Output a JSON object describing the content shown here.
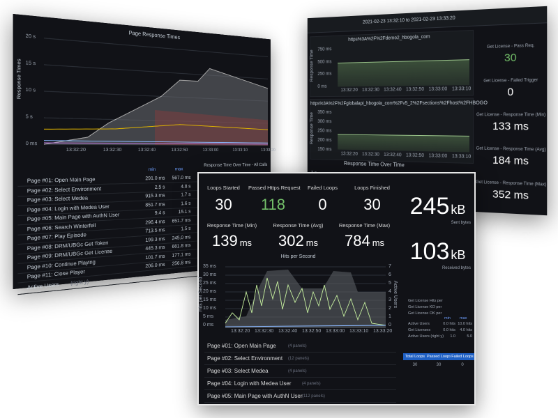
{
  "back_left": {
    "chart_title": "Page Response Times",
    "y_label": "Response Times",
    "yticks": [
      "20 s",
      "15 s",
      "10 s",
      "5 s",
      "0 ms"
    ],
    "xticks": [
      "13:32:20",
      "13:32:30",
      "13:32:40",
      "13:32:50",
      "13:33:00",
      "13:33:10",
      "13:33:20"
    ],
    "legend_header": [
      "min",
      "max"
    ],
    "legend": [
      {
        "name": "Page #01: Open Main Page",
        "min": "291.0 ms",
        "max": "567.0 ms"
      },
      {
        "name": "Page #02: Select Environment",
        "min": "2.5 s",
        "max": "4.8 s"
      },
      {
        "name": "Page #03: Select Medea",
        "min": "915.3 ms",
        "max": "1.7 s"
      },
      {
        "name": "Page #04: Login with Medea User",
        "min": "851.7 ms",
        "max": "1.6 s"
      },
      {
        "name": "Page #05: Main Page with AuthN User",
        "min": "9.4 s",
        "max": "15.1 s"
      },
      {
        "name": "Page #06: Search Winterfell",
        "min": "296.4 ms",
        "max": "651.7 ms"
      },
      {
        "name": "Page #07: Play Episode",
        "min": "713.5 ms",
        "max": "1.5 s"
      },
      {
        "name": "Page #08: DRM/UBGc Get Token",
        "min": "199.3 ms",
        "max": "245.0 ms"
      },
      {
        "name": "Page #09: DRM/UBGc Get License",
        "min": "445.3 ms",
        "max": "661.8 ms"
      },
      {
        "name": "Page #10: Continue Playing",
        "min": "101.7 ms",
        "max": "177.1 ms"
      },
      {
        "name": "Page #11: Close Player",
        "min": "206.0 ms",
        "max": "256.8 ms"
      }
    ],
    "active_users": "Active Users",
    "active_users_note": "(right y)",
    "second_title": "Response Time Over Time - All Calls"
  },
  "back_right": {
    "time_range": "2021-02-23 13:32:10 to 2021-02-23 13:33:20",
    "panels": [
      {
        "title": "https%3A%2F%2Fdemo2_hbogola_com",
        "y_label": "Response Time",
        "yticks": [
          "750 ms",
          "500 ms",
          "250 ms",
          "0 ms"
        ]
      },
      {
        "title": "https%3A%2F%2Fglobalapi_hbogola_com%2Fv5_2%2Fsections%2Fhost%2FHBOGO",
        "y_label": "Response Time",
        "yticks": [
          "350 ms",
          "300 ms",
          "250 ms",
          "200 ms",
          "150 ms"
        ]
      }
    ],
    "xticks": [
      "13:32:20",
      "13:32:30",
      "13:32:40",
      "13:32:50",
      "13:33:00",
      "13:33:10"
    ],
    "third_title": "Response Time Over Time",
    "third_ytick": "2 s",
    "stats": [
      {
        "label": "Get License - Pass Req.",
        "value": "30"
      },
      {
        "label": "Get License - Failed Trigger",
        "value": "0"
      },
      {
        "label": "Get License - Response Time (Min)",
        "value": "133 ms"
      },
      {
        "label": "Get License - Response Time (Avg)",
        "value": "184 ms"
      },
      {
        "label": "Get License - Response Time (Max)",
        "value": "352 ms"
      }
    ]
  },
  "front": {
    "stats": [
      {
        "label": "Loops Started",
        "value": "30"
      },
      {
        "label": "Passed Https Request",
        "value": "118"
      },
      {
        "label": "Failed Loops",
        "value": "0"
      },
      {
        "label": "Loops Finished",
        "value": "30"
      }
    ],
    "times": [
      {
        "label": "Response Time (Min)",
        "value": "139",
        "unit": "ms"
      },
      {
        "label": "Response Time (Avg)",
        "value": "302",
        "unit": "ms"
      },
      {
        "label": "Response Time (Max)",
        "value": "784",
        "unit": "ms"
      }
    ],
    "bytes": [
      {
        "value": "245",
        "unit": "kB",
        "label": "Sent bytes"
      },
      {
        "value": "103",
        "unit": "kB",
        "label": "Received bytes"
      }
    ],
    "chart_title": "Hits per Second",
    "y_label": "Hits per Second",
    "y2_label": "Active Users",
    "yticks": [
      "35 ms",
      "30 ms",
      "25 ms",
      "20 ms",
      "15 ms",
      "10 ms",
      "5 ms",
      "0 ms"
    ],
    "y2ticks": [
      "7",
      "6",
      "5",
      "4",
      "3",
      "2",
      "1",
      "0"
    ],
    "xticks": [
      "13:32:20",
      "13:32:30",
      "13:32:40",
      "13:32:50",
      "13:33:00",
      "13:33:10",
      "13:33:20"
    ],
    "legend": [
      "Get License Hits per",
      "Get License KO per",
      "Get License OK per"
    ],
    "table_header": [
      "min",
      "max"
    ],
    "table": [
      {
        "name": "Active Users",
        "min": "0.0 hits",
        "max": "10.0 hits"
      },
      {
        "name": "Get Licenses",
        "min": "0.0 hits",
        "max": "4.0 hits"
      },
      {
        "name": "Active Users (right y)",
        "min": "1.0",
        "max": "5.0"
      }
    ],
    "loops": [
      {
        "label": "Total Loops",
        "value": "30"
      },
      {
        "label": "Passed Loops",
        "value": "30"
      },
      {
        "label": "Failed Loops",
        "value": "0"
      }
    ],
    "rows": [
      {
        "name": "Page #01: Open Main Page",
        "note": "(4 panels)"
      },
      {
        "name": "Page #02: Select Environment",
        "note": "(12 panels)"
      },
      {
        "name": "Page #03: Select Medea",
        "note": "(4 panels)"
      },
      {
        "name": "Page #04: Login with Medea User",
        "note": "(4 panels)"
      },
      {
        "name": "Page #05: Main Page with AuthN User",
        "note": "(112 panels)"
      }
    ]
  }
}
